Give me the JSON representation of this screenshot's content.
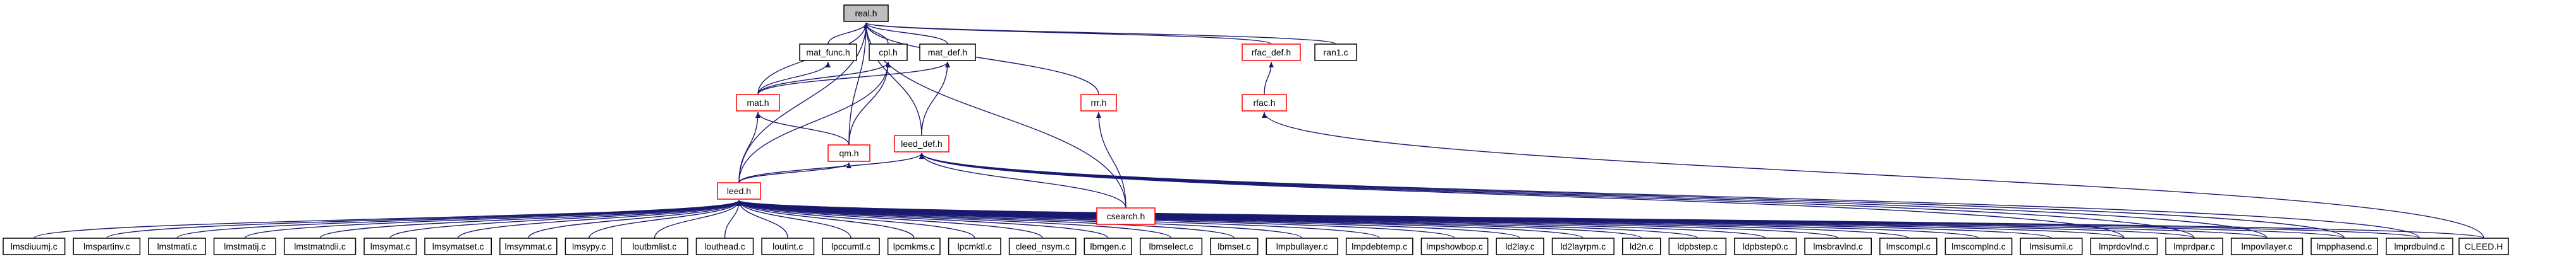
{
  "colors": {
    "edge": "#191970",
    "normal_border": "#000000",
    "red_border": "#ff0000",
    "root_fill": "#bfbfbf"
  },
  "nodes": [
    {
      "id": "n-real",
      "label": "real.h",
      "style": "root"
    },
    {
      "id": "n-mat_func",
      "label": "mat_func.h",
      "style": "normal"
    },
    {
      "id": "n-cpl",
      "label": "cpl.h",
      "style": "normal"
    },
    {
      "id": "n-mat_def",
      "label": "mat_def.h",
      "style": "normal"
    },
    {
      "id": "n-rfac_def",
      "label": "rfac_def.h",
      "style": "red"
    },
    {
      "id": "n-ran1",
      "label": "ran1.c",
      "style": "normal"
    },
    {
      "id": "n-mat",
      "label": "mat.h",
      "style": "red"
    },
    {
      "id": "n-rrr",
      "label": "rrr.h",
      "style": "red"
    },
    {
      "id": "n-rfac",
      "label": "rfac.h",
      "style": "red"
    },
    {
      "id": "n-leed_def",
      "label": "leed_def.h",
      "style": "red"
    },
    {
      "id": "n-qm",
      "label": "qm.h",
      "style": "red"
    },
    {
      "id": "n-csearch",
      "label": "csearch.h",
      "style": "red"
    },
    {
      "id": "n-leed",
      "label": "leed.h",
      "style": "red"
    },
    {
      "id": "n-matdiag",
      "label": "lmsdiuumj.c",
      "style": "normal"
    },
    {
      "id": "n-l01",
      "label": "lmspartinv.c",
      "style": "normal"
    },
    {
      "id": "n-l02",
      "label": "lmstmati.c",
      "style": "normal"
    },
    {
      "id": "n-l03",
      "label": "lmstmatij.c",
      "style": "normal"
    },
    {
      "id": "n-l04",
      "label": "lmstmatndii.c",
      "style": "normal"
    },
    {
      "id": "n-l05",
      "label": "lmsymat.c",
      "style": "normal"
    },
    {
      "id": "n-l06",
      "label": "lmsymatset.c",
      "style": "normal"
    },
    {
      "id": "n-l07",
      "label": "lmsymmat.c",
      "style": "normal"
    },
    {
      "id": "n-l08",
      "label": "lmsypy.c",
      "style": "normal"
    },
    {
      "id": "n-l09",
      "label": "loutbmlist.c",
      "style": "normal"
    },
    {
      "id": "n-l10",
      "label": "louthead.c",
      "style": "normal"
    },
    {
      "id": "n-l11",
      "label": "loutint.c",
      "style": "normal"
    },
    {
      "id": "n-l12",
      "label": "lpccumtl.c",
      "style": "normal"
    },
    {
      "id": "n-l13",
      "label": "lpcmkms.c",
      "style": "normal"
    },
    {
      "id": "n-l14",
      "label": "lpcmktl.c",
      "style": "normal"
    },
    {
      "id": "n-l15",
      "label": "cleed_nsym.c",
      "style": "normal"
    },
    {
      "id": "n-l16",
      "label": "lbmgen.c",
      "style": "normal"
    },
    {
      "id": "n-l17",
      "label": "lbmselect.c",
      "style": "normal"
    },
    {
      "id": "n-l18",
      "label": "lbmset.c",
      "style": "normal"
    },
    {
      "id": "n-l19",
      "label": "lmpbullayer.c",
      "style": "normal"
    },
    {
      "id": "n-l20",
      "label": "lmpdebtemp.c",
      "style": "normal"
    },
    {
      "id": "n-l21",
      "label": "lmpshowbop.c",
      "style": "normal"
    },
    {
      "id": "n-l22",
      "label": "ld2lay.c",
      "style": "normal"
    },
    {
      "id": "n-l23",
      "label": "ld2layrpm.c",
      "style": "normal"
    },
    {
      "id": "n-l24",
      "label": "ld2n.c",
      "style": "normal"
    },
    {
      "id": "n-l25",
      "label": "ldpbstep.c",
      "style": "normal"
    },
    {
      "id": "n-l26",
      "label": "ldpbstep0.c",
      "style": "normal"
    },
    {
      "id": "n-l27",
      "label": "lmsbravlnd.c",
      "style": "normal"
    },
    {
      "id": "n-l28",
      "label": "lmscompl.c",
      "style": "normal"
    },
    {
      "id": "n-l29",
      "label": "lmscomplnd.c",
      "style": "normal"
    },
    {
      "id": "n-l30",
      "label": "lmsisumii.c",
      "style": "normal"
    },
    {
      "id": "n-l31",
      "label": "lmprdovlnd.c",
      "style": "normal"
    },
    {
      "id": "n-l32",
      "label": "lmprdpar.c",
      "style": "normal"
    },
    {
      "id": "n-l33",
      "label": "lmpovllayer.c",
      "style": "normal"
    },
    {
      "id": "n-l34",
      "label": "lmpphasend.c",
      "style": "normal"
    },
    {
      "id": "n-l35",
      "label": "lmprdbulnd.c",
      "style": "normal"
    },
    {
      "id": "n-cleedh",
      "label": "CLEED.H",
      "style": "normal"
    }
  ]
}
